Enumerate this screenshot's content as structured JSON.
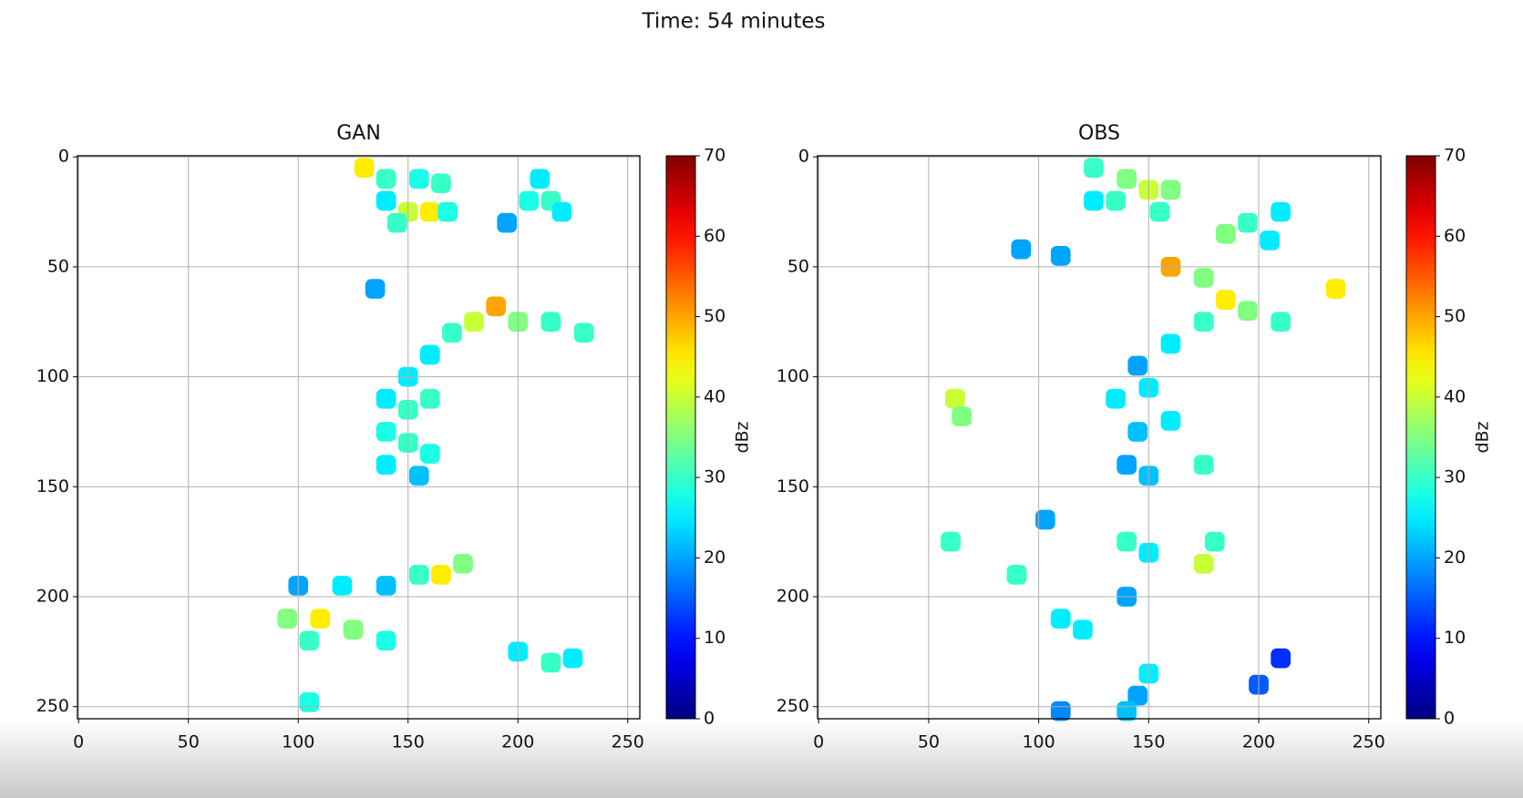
{
  "suptitle": "Time: 54 minutes",
  "chart_data": [
    {
      "type": "heatmap",
      "title": "GAN",
      "colormap": "jet",
      "grid": true,
      "xlim": [
        -0.5,
        255.5
      ],
      "ylim": [
        255.5,
        -0.5
      ],
      "xticks": [
        0,
        50,
        100,
        150,
        200,
        250
      ],
      "yticks": [
        0,
        50,
        100,
        150,
        200,
        250
      ],
      "clim": [
        0,
        70
      ],
      "cticks": [
        0,
        10,
        20,
        30,
        40,
        50,
        60,
        70
      ],
      "colorbar_label": "dBz",
      "x": [
        130,
        140,
        155,
        165,
        150,
        160,
        145,
        140,
        168,
        210,
        215,
        205,
        220,
        195,
        135,
        190,
        180,
        200,
        215,
        230,
        170,
        160,
        150,
        140,
        150,
        160,
        140,
        150,
        160,
        140,
        155,
        165,
        175,
        155,
        140,
        120,
        100,
        95,
        110,
        125,
        140,
        105,
        200,
        215,
        225,
        105
      ],
      "y": [
        5,
        10,
        10,
        12,
        25,
        25,
        30,
        20,
        25,
        10,
        20,
        20,
        25,
        30,
        60,
        68,
        75,
        75,
        75,
        80,
        80,
        90,
        100,
        110,
        115,
        110,
        125,
        130,
        135,
        140,
        145,
        190,
        185,
        190,
        195,
        195,
        195,
        210,
        210,
        215,
        220,
        220,
        225,
        230,
        228,
        248
      ],
      "values": [
        45,
        30,
        28,
        30,
        40,
        45,
        30,
        25,
        28,
        25,
        30,
        28,
        25,
        20,
        20,
        50,
        40,
        35,
        30,
        30,
        30,
        25,
        25,
        25,
        30,
        30,
        28,
        30,
        28,
        25,
        22,
        45,
        35,
        30,
        22,
        25,
        20,
        35,
        45,
        35,
        28,
        30,
        25,
        30,
        25,
        28
      ]
    },
    {
      "type": "heatmap",
      "title": "OBS",
      "colormap": "jet",
      "grid": true,
      "xlim": [
        -0.5,
        255.5
      ],
      "ylim": [
        255.5,
        -0.5
      ],
      "xticks": [
        0,
        50,
        100,
        150,
        200,
        250
      ],
      "yticks": [
        0,
        50,
        100,
        150,
        200,
        250
      ],
      "clim": [
        0,
        70
      ],
      "cticks": [
        0,
        10,
        20,
        30,
        40,
        50,
        60,
        70
      ],
      "colorbar_label": "dBz",
      "x": [
        125,
        140,
        150,
        160,
        135,
        155,
        125,
        195,
        210,
        185,
        205,
        92,
        110,
        160,
        175,
        185,
        195,
        175,
        210,
        235,
        160,
        145,
        135,
        150,
        145,
        160,
        140,
        150,
        175,
        62,
        65,
        60,
        90,
        103,
        140,
        150,
        175,
        180,
        110,
        120,
        140,
        150,
        145,
        140,
        110,
        200,
        210
      ],
      "y": [
        5,
        10,
        15,
        15,
        20,
        25,
        20,
        30,
        25,
        35,
        38,
        42,
        45,
        50,
        55,
        65,
        70,
        75,
        75,
        60,
        85,
        95,
        110,
        105,
        125,
        120,
        140,
        145,
        140,
        110,
        118,
        175,
        190,
        165,
        175,
        180,
        185,
        175,
        210,
        215,
        200,
        235,
        245,
        252,
        252,
        240,
        228
      ],
      "values": [
        30,
        35,
        40,
        35,
        30,
        30,
        25,
        30,
        25,
        35,
        25,
        20,
        20,
        50,
        35,
        45,
        35,
        30,
        30,
        45,
        25,
        20,
        25,
        25,
        22,
        25,
        20,
        22,
        30,
        40,
        35,
        30,
        30,
        20,
        30,
        25,
        40,
        30,
        25,
        25,
        20,
        25,
        20,
        22,
        18,
        15,
        12
      ]
    }
  ]
}
